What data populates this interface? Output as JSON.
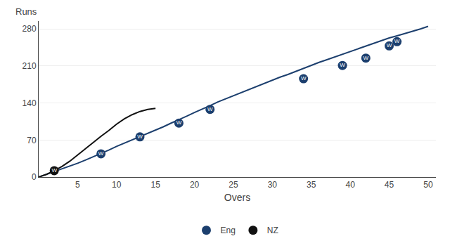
{
  "chart_data": {
    "type": "line",
    "xlabel": "Overs",
    "ylabel": "Runs",
    "xlim": [
      0,
      51
    ],
    "xticks": [
      5,
      10,
      15,
      20,
      25,
      30,
      35,
      40,
      45,
      50
    ],
    "ylim": [
      0,
      295
    ],
    "yticks": [
      0,
      70,
      140,
      210,
      280
    ],
    "grid": "y",
    "legend": "bottom",
    "marker_label": "W",
    "series": [
      {
        "name": "Eng",
        "color": "#1c3f6e",
        "marker": "circle",
        "x": [
          0,
          1,
          2,
          3,
          4,
          5,
          6,
          7,
          8,
          9,
          10,
          11,
          12,
          13,
          14,
          15,
          16,
          17,
          18,
          19,
          20,
          21,
          22,
          23,
          24,
          25,
          26,
          27,
          28,
          29,
          30,
          31,
          32,
          33,
          34,
          35,
          36,
          37,
          38,
          39,
          40,
          41,
          42,
          43,
          44,
          45,
          46,
          47,
          48,
          49,
          50
        ],
        "values": [
          0,
          5,
          10,
          15,
          21,
          26,
          32,
          38,
          44,
          51,
          58,
          64,
          70,
          76,
          82,
          88,
          95,
          102,
          108,
          115,
          122,
          128,
          135,
          142,
          148,
          154,
          160,
          166,
          171,
          177,
          183,
          189,
          194,
          200,
          205,
          211,
          217,
          222,
          227,
          233,
          238,
          243,
          248,
          253,
          258,
          263,
          267,
          271,
          276,
          280,
          285
        ],
        "wickets": {
          "x": [
            8,
            13,
            18,
            22,
            34,
            39,
            42,
            45,
            46
          ],
          "values": [
            44,
            76,
            102,
            128,
            186,
            211,
            225,
            248,
            256
          ]
        }
      },
      {
        "name": "NZ",
        "color": "#111111",
        "marker": "circle",
        "x": [
          0,
          1,
          2,
          3,
          4,
          5,
          6,
          7,
          8,
          9,
          10,
          11,
          12,
          13,
          14,
          15
        ],
        "values": [
          0,
          5,
          12,
          20,
          30,
          42,
          54,
          65,
          77,
          88,
          100,
          110,
          118,
          124,
          128,
          130
        ],
        "wickets": {
          "x": [
            2
          ],
          "values": [
            12
          ]
        }
      }
    ]
  }
}
